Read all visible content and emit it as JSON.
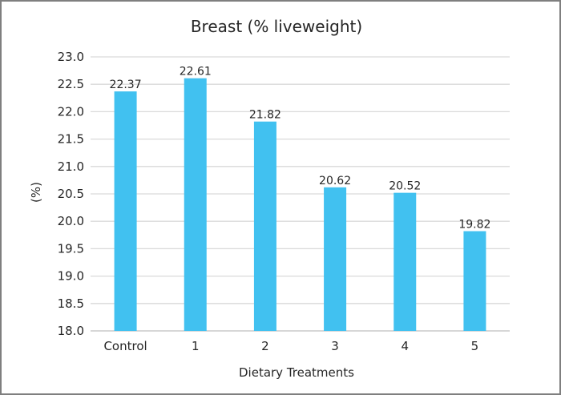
{
  "chart_data": {
    "type": "bar",
    "title": "Breast  (% liveweight)",
    "xlabel": "Dietary Treatments",
    "ylabel": "(%)",
    "categories": [
      "Control",
      "1",
      "2",
      "3",
      "4",
      "5"
    ],
    "values": [
      22.37,
      22.61,
      21.82,
      20.62,
      20.52,
      19.82
    ],
    "data_labels": [
      "22.37",
      "22.61",
      "21.82",
      "20.62",
      "20.52",
      "19.82"
    ],
    "ylim": [
      18.0,
      23.0
    ],
    "yticks": [
      "18.0",
      "18.5",
      "19.0",
      "19.5",
      "20.0",
      "20.5",
      "21.0",
      "21.5",
      "22.0",
      "22.5",
      "23.0"
    ],
    "grid": true,
    "legend": "none",
    "bar_color": "#41c1f0",
    "grid_color": "#d9d9d9"
  }
}
